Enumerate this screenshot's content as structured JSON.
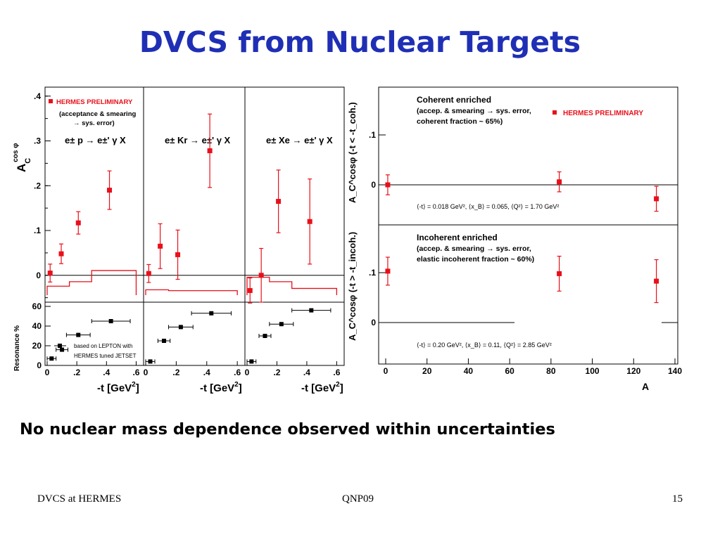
{
  "slide": {
    "title": "DVCS from Nuclear Targets",
    "conclusion": "No nuclear mass dependence observed within uncertainties",
    "footer_left": "DVCS at HERMES",
    "footer_center": "QNP09",
    "page_number": "15"
  },
  "colors": {
    "title": "#1f2fb5",
    "data": "#e8101a",
    "resonance": "#000000"
  },
  "labels": {
    "preliminary": "HERMES PRELIMINARY",
    "acceptance_line1": "(acceptance & smearing",
    "acceptance_line2": "→ sys. error)",
    "resonance_note1": "based on LEPTON with",
    "resonance_note2": "HERMES tuned JETSET",
    "coherent_title": "Coherent enriched",
    "coherent_line1": "(accep. & smearing → sys. error,",
    "coherent_line2": "coherent fraction ~ 65%)",
    "coherent_kin": "⟨-t⟩ = 0.018 GeV², ⟨x_B⟩ = 0.065, ⟨Q²⟩ = 1.70 GeV²",
    "incoherent_title": "Incoherent enriched",
    "incoherent_line1": "(accep. & smearing → sys. error,",
    "incoherent_line2": "elastic incoherent fraction ~ 60%)",
    "incoherent_kin": "⟨-t⟩ = 0.20 GeV², ⟨x_B⟩ = 0.11, ⟨Q²⟩ = 2.85 GeV²"
  },
  "chart_data": [
    {
      "type": "scatter",
      "name": "A_C^cosφ vs -t, three targets",
      "ylabel": "A_C^cosφ",
      "xlabel": "-t [GeV²]",
      "xlim": [
        0,
        0.65
      ],
      "ylim": [
        -0.06,
        0.42
      ],
      "yticks": [
        0,
        0.1,
        0.2,
        0.3,
        0.4
      ],
      "xticks": [
        0,
        0.2,
        0.4,
        0.6
      ],
      "panels": [
        {
          "reaction": "e± p → e±' γ X",
          "points": [
            {
              "x": 0.02,
              "y": 0.005,
              "err": 0.02
            },
            {
              "x": 0.095,
              "y": 0.048,
              "err": 0.022
            },
            {
              "x": 0.21,
              "y": 0.117,
              "err": 0.025
            },
            {
              "x": 0.42,
              "y": 0.19,
              "err": 0.043
            }
          ],
          "sys_band": [
            {
              "x0": 0.0,
              "x1": 0.15,
              "h": 0.02
            },
            {
              "x0": 0.15,
              "x1": 0.3,
              "h": 0.03
            },
            {
              "x0": 0.3,
              "x1": 0.6,
              "h": 0.055
            }
          ]
        },
        {
          "reaction": "e± Kr → e±' γ X",
          "points": [
            {
              "x": 0.02,
              "y": 0.004,
              "err": 0.02
            },
            {
              "x": 0.095,
              "y": 0.065,
              "err": 0.05
            },
            {
              "x": 0.21,
              "y": 0.046,
              "err": 0.055
            },
            {
              "x": 0.42,
              "y": 0.278,
              "err": 0.082
            }
          ],
          "sys_band": [
            {
              "x0": 0.0,
              "x1": 0.15,
              "h": 0.012
            },
            {
              "x0": 0.15,
              "x1": 0.3,
              "h": 0.01
            },
            {
              "x0": 0.3,
              "x1": 0.6,
              "h": 0.01
            }
          ]
        },
        {
          "reaction": "e± Xe → e±' γ X",
          "points": [
            {
              "x": 0.02,
              "y": -0.034,
              "err": 0.028
            },
            {
              "x": 0.095,
              "y": 0.0,
              "err": 0.06
            },
            {
              "x": 0.21,
              "y": 0.165,
              "err": 0.07
            },
            {
              "x": 0.42,
              "y": 0.12,
              "err": 0.095
            }
          ],
          "sys_band": [
            {
              "x0": 0.0,
              "x1": 0.15,
              "h": 0.04
            },
            {
              "x0": 0.15,
              "x1": 0.3,
              "h": 0.03
            },
            {
              "x0": 0.3,
              "x1": 0.6,
              "h": 0.015
            }
          ]
        }
      ]
    },
    {
      "type": "scatter",
      "name": "Resonance fraction vs -t",
      "ylabel": "Resonance %",
      "xlabel": "-t [GeV²]",
      "xlim": [
        0,
        0.65
      ],
      "ylim": [
        0,
        60
      ],
      "yticks": [
        0,
        20,
        40,
        60
      ],
      "xticks": [
        0,
        0.2,
        0.4,
        0.6
      ],
      "panels": [
        {
          "points": [
            {
              "x": 0.03,
              "y": 7,
              "xerr": 0.03
            },
            {
              "x": 0.1,
              "y": 16,
              "xerr": 0.04
            },
            {
              "x": 0.21,
              "y": 31,
              "xerr": 0.08
            },
            {
              "x": 0.43,
              "y": 45,
              "xerr": 0.13
            }
          ]
        },
        {
          "points": [
            {
              "x": 0.03,
              "y": 4,
              "xerr": 0.03
            },
            {
              "x": 0.12,
              "y": 25,
              "xerr": 0.04
            },
            {
              "x": 0.23,
              "y": 39,
              "xerr": 0.08
            },
            {
              "x": 0.43,
              "y": 53,
              "xerr": 0.13
            }
          ]
        },
        {
          "points": [
            {
              "x": 0.03,
              "y": 4,
              "xerr": 0.03
            },
            {
              "x": 0.12,
              "y": 30,
              "xerr": 0.04
            },
            {
              "x": 0.23,
              "y": 42,
              "xerr": 0.08
            },
            {
              "x": 0.43,
              "y": 56,
              "xerr": 0.13
            }
          ]
        }
      ]
    },
    {
      "type": "scatter",
      "name": "A_C^cosφ vs A",
      "xlabel": "A",
      "xlim": [
        0,
        140
      ],
      "xticks": [
        0,
        20,
        40,
        60,
        80,
        100,
        120,
        140
      ],
      "panels": [
        {
          "ylabel": "A_C^cosφ (-t < -t_coh.)",
          "ylim": [
            -0.07,
            0.2
          ],
          "yticks": [
            0,
            0.1
          ],
          "points": [
            {
              "x": 1,
              "y": 0.0,
              "err": 0.02
            },
            {
              "x": 84,
              "y": 0.006,
              "err": 0.02
            },
            {
              "x": 131,
              "y": -0.028,
              "err": 0.025
            }
          ]
        },
        {
          "ylabel": "A_C^cosφ (-t > -t_incoh.)",
          "ylim": [
            -0.07,
            0.2
          ],
          "yticks": [
            0,
            0.1
          ],
          "points": [
            {
              "x": 1,
              "y": 0.103,
              "err": 0.028
            },
            {
              "x": 84,
              "y": 0.098,
              "err": 0.035
            },
            {
              "x": 131,
              "y": 0.083,
              "err": 0.043
            }
          ]
        }
      ]
    }
  ]
}
